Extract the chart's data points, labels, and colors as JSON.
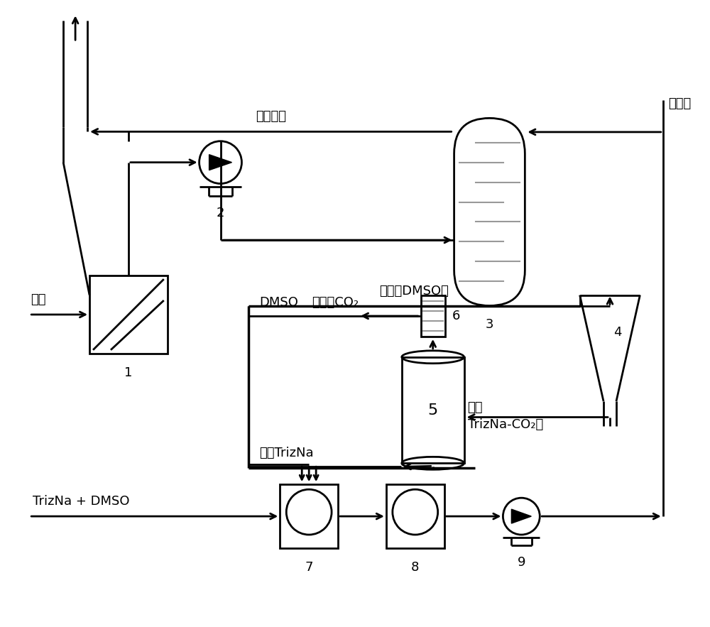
{
  "bg": "#ffffff",
  "lc": "#000000",
  "gray": "#999999",
  "lw": 2.0,
  "fs": 13,
  "labels": {
    "clean_gas": "洁净烟气",
    "absorbent": "吸收剂",
    "filtrate_dmso": "滤液（DMSO）",
    "high_co2": "高浓度CO₂",
    "dmso": "DMSO",
    "regen_trizna": "再生TrizNa",
    "filter_residue": "滤渣",
    "trizna_co2": "TrizNa-CO₂盐",
    "trizna_dmso": "TrizNa + DMSO",
    "flue_gas": "烟气",
    "n1": "1",
    "n2": "2",
    "n3": "3",
    "n4": "4",
    "n5": "5",
    "n6": "6",
    "n7": "7",
    "n8": "8",
    "n9": "9"
  }
}
